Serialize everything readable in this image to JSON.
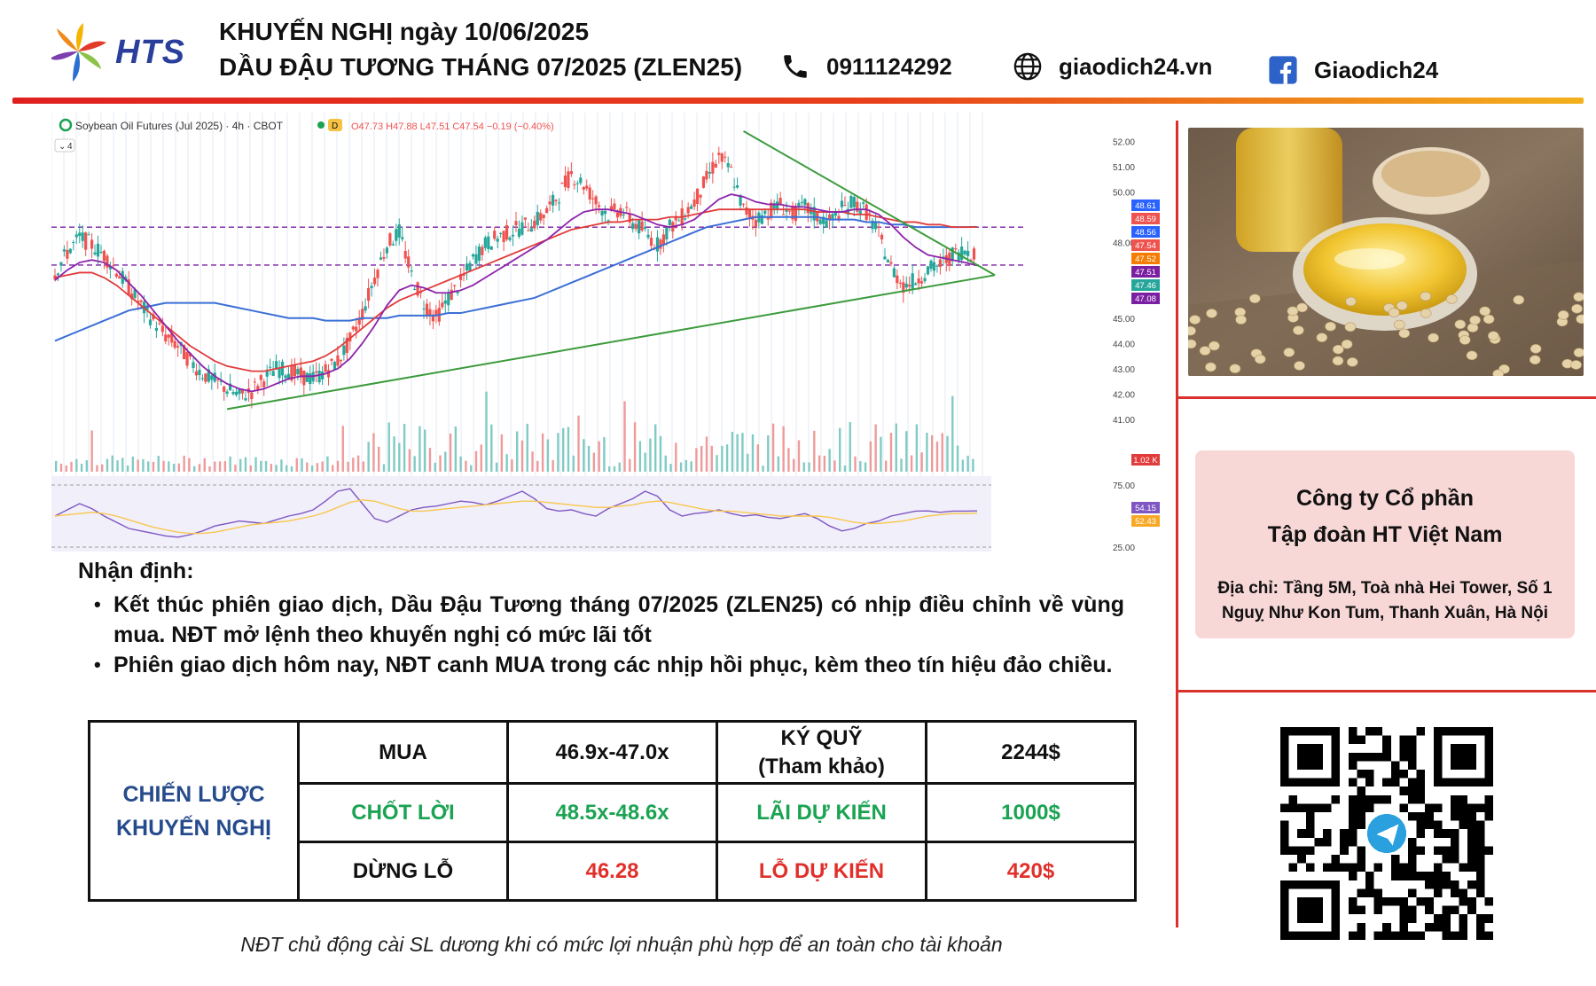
{
  "header": {
    "brand": "HTS",
    "title_line1": "KHUYẾN NGHỊ ngày 10/06/2025",
    "title_line2": "DẦU ĐẬU TƯƠNG THÁNG 07/2025 (ZLEN25)",
    "phone": "0911124292",
    "website": "giaodich24.vn",
    "facebook": "Giaodich24",
    "icons": [
      "logo-flower-icon",
      "phone-icon",
      "globe-icon",
      "facebook-icon"
    ],
    "rule_colors": [
      "#e02020",
      "#f3b11c"
    ]
  },
  "chart_data": {
    "type": "candlestick",
    "symbol_label": "Soybean Oil Futures (Jul 2025) · 4h · CBOT",
    "interval_badge": "D",
    "ohlc_label": "O47.73 H47.88 L47.51 C47.54 −0.19 (−0.40%)",
    "indicator_count": "4",
    "y_ticks": [
      "52.00",
      "51.00",
      "50.00",
      "48.00",
      "45.00",
      "44.00",
      "43.00",
      "42.00",
      "41.00"
    ],
    "price_tags": [
      {
        "text": "48.61",
        "color": "#2962ff"
      },
      {
        "text": "48.59",
        "color": "#ef5350"
      },
      {
        "text": "48.56",
        "color": "#2962ff"
      },
      {
        "text": "47.54",
        "color": "#ef5350"
      },
      {
        "text": "47.52",
        "color": "#f57c00"
      },
      {
        "text": "47.51",
        "color": "#7b1fa2"
      },
      {
        "text": "47.46",
        "color": "#26a69a"
      },
      {
        "text": "47.08",
        "color": "#7b1fa2"
      }
    ],
    "volume_tag": "1.02 K",
    "osc_ticks": [
      "75.00",
      "25.00"
    ],
    "osc_tags": [
      {
        "text": "54.15",
        "color": "#7e57c2"
      },
      {
        "text": "52.43",
        "color": "#f9a825"
      }
    ],
    "price_range": [
      40.5,
      52.5
    ],
    "close_path": [
      46.8,
      47.6,
      48.2,
      47.9,
      47.5,
      46.9,
      46.2,
      45.5,
      44.9,
      44.3,
      43.9,
      43.3,
      42.8,
      42.5,
      42.2,
      41.9,
      42.1,
      42.6,
      43.0,
      42.9,
      42.7,
      42.6,
      42.9,
      43.3,
      44.1,
      45.2,
      46.6,
      47.9,
      48.4,
      46.7,
      45.6,
      45.0,
      45.8,
      46.4,
      47.3,
      47.9,
      48.2,
      48.4,
      48.6,
      48.8,
      49.2,
      49.9,
      50.7,
      50.3,
      49.6,
      49.1,
      49.3,
      48.8,
      48.4,
      47.9,
      48.6,
      49.0,
      49.6,
      50.5,
      51.4,
      50.8,
      49.3,
      48.9,
      49.2,
      49.5,
      49.1,
      49.4,
      49.0,
      48.8,
      49.3,
      49.6,
      49.2,
      48.3,
      47.0,
      46.3,
      46.5,
      46.9,
      47.1,
      47.5,
      47.7,
      47.54
    ],
    "ma_red": [
      46.6,
      46.7,
      46.8,
      46.8,
      46.6,
      46.3,
      45.9,
      45.5,
      45.1,
      44.7,
      44.3,
      43.9,
      43.6,
      43.3,
      43.1,
      43.0,
      42.9,
      42.9,
      43.0,
      43.1,
      43.2,
      43.3,
      43.5,
      43.8,
      44.2,
      44.6,
      45.0,
      45.4,
      45.7,
      45.9,
      46.1,
      46.3,
      46.5,
      46.7,
      46.9,
      47.1,
      47.3,
      47.5,
      47.7,
      47.9,
      48.1,
      48.3,
      48.5,
      48.6,
      48.7,
      48.8,
      48.8,
      48.9,
      48.9,
      48.9,
      49.0,
      49.0,
      49.1,
      49.2,
      49.3,
      49.3,
      49.3,
      49.3,
      49.3,
      49.3,
      49.3,
      49.3,
      49.2,
      49.2,
      49.2,
      49.1,
      49.1,
      49.0,
      48.9,
      48.8,
      48.8,
      48.7,
      48.7,
      48.6,
      48.6,
      48.6
    ],
    "ma_blue": [
      44.1,
      44.3,
      44.5,
      44.7,
      44.9,
      45.1,
      45.3,
      45.4,
      45.5,
      45.6,
      45.6,
      45.6,
      45.6,
      45.6,
      45.5,
      45.4,
      45.3,
      45.2,
      45.1,
      45.0,
      45.0,
      45.0,
      44.9,
      44.9,
      44.9,
      45.0,
      45.0,
      45.0,
      45.1,
      45.1,
      45.1,
      45.1,
      45.2,
      45.2,
      45.3,
      45.4,
      45.5,
      45.6,
      45.7,
      45.8,
      46.0,
      46.2,
      46.4,
      46.6,
      46.8,
      47.0,
      47.2,
      47.4,
      47.6,
      47.8,
      48.0,
      48.2,
      48.4,
      48.6,
      48.7,
      48.8,
      48.9,
      49.0,
      49.0,
      49.0,
      49.0,
      49.0,
      49.0,
      48.9,
      48.9,
      48.9,
      48.8,
      48.8,
      48.7,
      48.7,
      48.6,
      48.6,
      48.6,
      48.6,
      48.6,
      48.61
    ],
    "ma_purple": [
      46.5,
      46.9,
      47.2,
      47.3,
      47.2,
      46.9,
      46.4,
      45.9,
      45.3,
      44.7,
      44.1,
      43.6,
      43.1,
      42.7,
      42.4,
      42.2,
      42.1,
      42.2,
      42.4,
      42.6,
      42.7,
      42.7,
      42.8,
      43.0,
      43.4,
      44.0,
      44.7,
      45.5,
      46.1,
      46.3,
      46.2,
      46.0,
      46.0,
      46.1,
      46.3,
      46.6,
      46.9,
      47.2,
      47.5,
      47.8,
      48.1,
      48.5,
      48.9,
      49.2,
      49.3,
      49.3,
      49.2,
      49.1,
      48.9,
      48.7,
      48.6,
      48.7,
      48.9,
      49.3,
      49.7,
      49.9,
      49.8,
      49.6,
      49.5,
      49.5,
      49.4,
      49.4,
      49.3,
      49.2,
      49.2,
      49.3,
      49.3,
      49.1,
      48.7,
      48.2,
      47.8,
      47.5,
      47.4,
      47.3,
      47.2,
      47.08
    ],
    "trendline_up": [
      [
        14,
        41.4
      ],
      [
        75,
        46.7
      ]
    ],
    "trendline_down": [
      [
        56,
        52.4
      ],
      [
        75,
        46.7
      ]
    ],
    "levels_dashed": [
      48.6,
      47.1
    ],
    "rsi": [
      50,
      55,
      60,
      56,
      50,
      45,
      40,
      38,
      36,
      34,
      33,
      35,
      38,
      42,
      44,
      46,
      45,
      44,
      47,
      50,
      52,
      55,
      62,
      70,
      72,
      60,
      48,
      45,
      50,
      55,
      57,
      58,
      60,
      62,
      61,
      59,
      62,
      66,
      70,
      64,
      56,
      54,
      55,
      52,
      50,
      56,
      60,
      64,
      70,
      66,
      55,
      50,
      52,
      53,
      55,
      52,
      50,
      51,
      49,
      48,
      50,
      52,
      48,
      42,
      38,
      40,
      44,
      46,
      50,
      52,
      54,
      54.15,
      53,
      54,
      54,
      54.15
    ],
    "rsi_ma": [
      50,
      51,
      52,
      53,
      52,
      50,
      47,
      44,
      41,
      39,
      37,
      36,
      36,
      37,
      39,
      41,
      43,
      44,
      45,
      46,
      48,
      50,
      53,
      57,
      61,
      63,
      62,
      59,
      56,
      54,
      54,
      55,
      56,
      57,
      58,
      59,
      60,
      61,
      62,
      62,
      61,
      60,
      59,
      58,
      57,
      57,
      58,
      59,
      61,
      62,
      61,
      59,
      57,
      55,
      54,
      54,
      53,
      52,
      51,
      50,
      50,
      50,
      50,
      49,
      47,
      45,
      44,
      44,
      45,
      46,
      48,
      50,
      51,
      52,
      52,
      52.43
    ]
  },
  "photo": {
    "icon": "soybean-oil-photo"
  },
  "company": {
    "name_line1": "Công ty Cổ phần",
    "name_line2": "Tập đoàn HT Việt Nam",
    "address_line1": "Địa chỉ: Tầng 5M, Toà nhà Hei Tower, Số 1",
    "address_line2": "Nguỵ Như Kon Tum, Thanh Xuân, Hà Nội"
  },
  "qr": {
    "icon": "telegram-qr-code-icon",
    "center_color": "#2aa1de"
  },
  "analysis": {
    "heading": "Nhận định:",
    "bullets": [
      "Kết thúc phiên giao dịch, Dầu Đậu Tương tháng 07/2025 (ZLEN25) có nhịp điều chỉnh về vùng mua. NĐT mở lệnh theo khuyến nghị có mức lãi tốt",
      "Phiên giao dịch hôm nay, NĐT canh MUA trong các nhịp hồi phục, kèm theo tín hiệu đảo chiều."
    ]
  },
  "strategy": {
    "label_line1": "CHIẾN LƯỢC",
    "label_line2": "KHUYẾN NGHỊ",
    "buy_label": "MUA",
    "buy_value": "46.9x-47.0x",
    "margin_label_line1": "KÝ QUỸ",
    "margin_label_line2": "(Tham khảo)",
    "margin_value": "2244$",
    "tp_label": "CHỐT LỜI",
    "tp_value": "48.5x-48.6x",
    "profit_label": "LÃI DỰ KIẾN",
    "profit_value": "1000$",
    "sl_label": "DỪNG LỖ",
    "sl_value": "46.28",
    "loss_label": "LỖ DỰ KIẾN",
    "loss_value": "420$",
    "colors": {
      "label": "#264b8d",
      "green": "#1aa352",
      "red": "#e0302b"
    }
  },
  "footnote": "NĐT chủ động cài SL dương khi có mức lợi nhuận phù hợp để an toàn cho tài khoản"
}
